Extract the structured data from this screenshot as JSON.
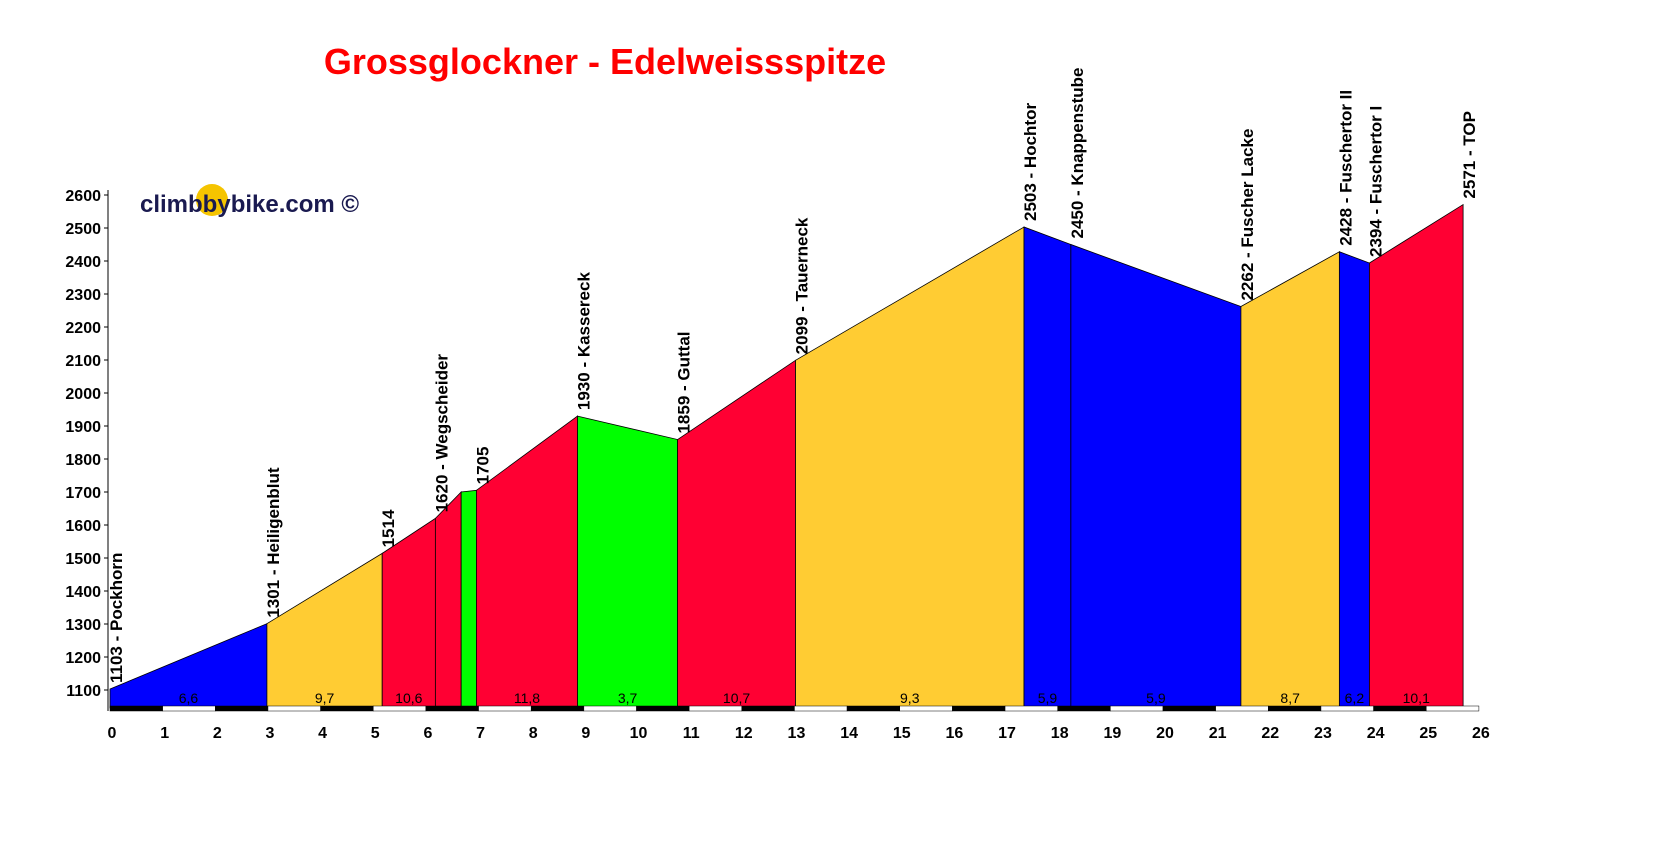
{
  "chart_data": {
    "type": "area",
    "title": "Grossglockner - Edelweissspitze",
    "watermark": "climbbybike.com ©",
    "xlabel": "",
    "ylabel": "",
    "xlim": [
      0,
      26
    ],
    "ylim": [
      1045,
      2600
    ],
    "x_ticks": [
      0,
      1,
      2,
      3,
      4,
      5,
      6,
      7,
      8,
      9,
      10,
      11,
      12,
      13,
      14,
      15,
      16,
      17,
      18,
      19,
      20,
      21,
      22,
      23,
      24,
      25,
      26
    ],
    "y_ticks": [
      1100,
      1200,
      1300,
      1400,
      1500,
      1600,
      1700,
      1800,
      1900,
      2000,
      2100,
      2200,
      2300,
      2400,
      2500,
      2600
    ],
    "points": [
      {
        "km": 0,
        "elev": 1103,
        "label": "1103 - Pockhorn"
      },
      {
        "km": 2.98,
        "elev": 1301,
        "label": "1301 - Heiligenblut"
      },
      {
        "km": 5.17,
        "elev": 1514,
        "label": "1514"
      },
      {
        "km": 6.18,
        "elev": 1620,
        "label": "1620 - Wegscheider"
      },
      {
        "km": 6.67,
        "elev": 1700,
        "label": ""
      },
      {
        "km": 6.96,
        "elev": 1705,
        "label": "1705"
      },
      {
        "km": 8.88,
        "elev": 1930,
        "label": "1930 - Kassereck"
      },
      {
        "km": 10.78,
        "elev": 1859,
        "label": "1859 - Guttal"
      },
      {
        "km": 13.02,
        "elev": 2099,
        "label": "2099 - Tauerneck"
      },
      {
        "km": 17.36,
        "elev": 2503,
        "label": "2503 - Hochtor"
      },
      {
        "km": 18.25,
        "elev": 2450,
        "label": "2450 - Knappenstube"
      },
      {
        "km": 21.48,
        "elev": 2262,
        "label": "2262 - Fuscher Lacke"
      },
      {
        "km": 23.35,
        "elev": 2428,
        "label": "2428 - Fuschertor II"
      },
      {
        "km": 23.92,
        "elev": 2394,
        "label": "2394 - Fuschertor I"
      },
      {
        "km": 25.7,
        "elev": 2571,
        "label": "2571 - TOP"
      }
    ],
    "segments": [
      {
        "gradient": "6,6",
        "color": "#0000ff"
      },
      {
        "gradient": "9,7",
        "color": "#ffcc33"
      },
      {
        "gradient": "10,6",
        "color": "#ff0033"
      },
      {
        "gradient": "",
        "color": "#ff0033"
      },
      {
        "gradient": "",
        "color": "#00ff00"
      },
      {
        "gradient": "11,8",
        "color": "#ff0033"
      },
      {
        "gradient": "3,7",
        "color": "#00ff00"
      },
      {
        "gradient": "10,7",
        "color": "#ff0033"
      },
      {
        "gradient": "9,3",
        "color": "#ffcc33"
      },
      {
        "gradient": "5,9",
        "color": "#0000ff"
      },
      {
        "gradient": "5,9",
        "color": "#0000ff"
      },
      {
        "gradient": "8,7",
        "color": "#ffcc33"
      },
      {
        "gradient": "6,2",
        "color": "#0000ff"
      },
      {
        "gradient": "10,1",
        "color": "#ff0033"
      }
    ]
  }
}
